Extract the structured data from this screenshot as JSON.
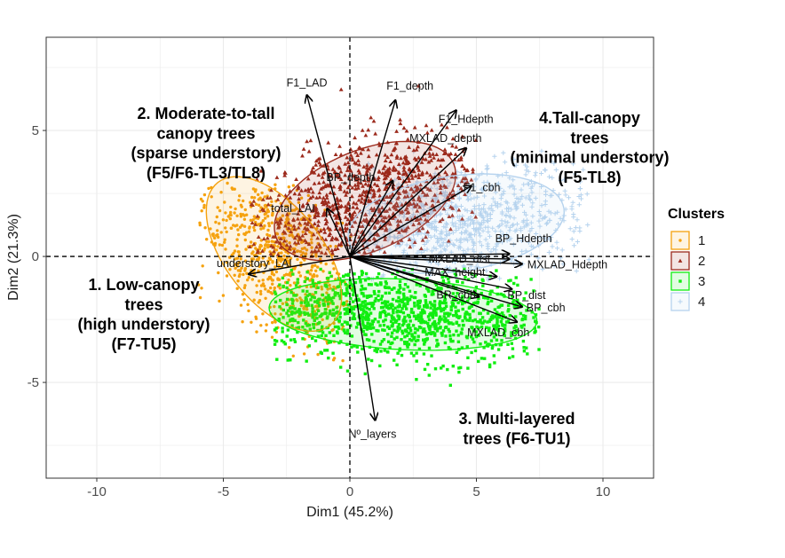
{
  "chart_data": {
    "type": "scatter",
    "subtype": "PCA biplot",
    "xlabel": "Dim1 (45.2%)",
    "ylabel": "Dim2 (21.3%)",
    "xlim": [
      -12,
      12
    ],
    "ylim": [
      -8.8,
      8.7
    ],
    "xticks": [
      -10,
      -5,
      0,
      5,
      10
    ],
    "yticks": [
      -5,
      0,
      5
    ],
    "grid": true,
    "reference_lines": {
      "x": 0,
      "y": 0,
      "style": "dashed"
    },
    "legend": {
      "title": "Clusters",
      "position": "right",
      "items": [
        {
          "label": "1",
          "color": "#F5A20F",
          "marker": "circle"
        },
        {
          "label": "2",
          "color": "#9C2A1C",
          "marker": "triangle"
        },
        {
          "label": "3",
          "color": "#11EE11",
          "marker": "square"
        },
        {
          "label": "4",
          "color": "#B6D3EE",
          "marker": "cross"
        }
      ]
    },
    "clusters": [
      {
        "label": "1",
        "color": "#F5A20F",
        "marker": "circle",
        "ellipse": {
          "cx": -3.0,
          "cy": 0.1,
          "rx": 3.6,
          "ry": 1.9,
          "angle_deg": -52
        },
        "point_extent": {
          "x": [
            -6.0,
            0.2
          ],
          "y": [
            -4.8,
            3.0
          ]
        }
      },
      {
        "label": "2",
        "color": "#9C2A1C",
        "marker": "triangle",
        "ellipse": {
          "cx": 0.6,
          "cy": 2.2,
          "rx": 3.8,
          "ry": 2.0,
          "angle_deg": 23
        },
        "point_extent": {
          "x": [
            -4.0,
            5.0
          ],
          "y": [
            0.0,
            6.8
          ]
        }
      },
      {
        "label": "3",
        "color": "#11EE11",
        "marker": "square",
        "ellipse": {
          "cx": 2.1,
          "cy": -2.3,
          "rx": 5.3,
          "ry": 1.4,
          "angle_deg": -3
        },
        "point_extent": {
          "x": [
            -3.0,
            7.5
          ],
          "y": [
            -6.0,
            -0.5
          ]
        }
      },
      {
        "label": "4",
        "color": "#B6D3EE",
        "marker": "cross",
        "ellipse": {
          "cx": 4.2,
          "cy": 1.3,
          "rx": 4.3,
          "ry": 1.9,
          "angle_deg": 8
        },
        "point_extent": {
          "x": [
            0.5,
            9.5
          ],
          "y": [
            -1.0,
            4.2
          ]
        }
      }
    ],
    "variables": [
      {
        "name": "F1_LAD",
        "x": -1.7,
        "y": 6.4
      },
      {
        "name": "F1_depth",
        "x": 1.8,
        "y": 6.2
      },
      {
        "name": "F1_Hdepth",
        "x": 4.2,
        "y": 5.8
      },
      {
        "name": "MXLAD_depth",
        "x": 4.6,
        "y": 4.3
      },
      {
        "name": "F1_cbh",
        "x": 4.8,
        "y": 2.8
      },
      {
        "name": "BP_depth",
        "x": 1.7,
        "y": 3.0
      },
      {
        "name": "total_LAI",
        "x": -0.9,
        "y": 1.9
      },
      {
        "name": "understory_LAI",
        "x": -4.0,
        "y": -0.7
      },
      {
        "name": "BP_Hdepth",
        "x": 6.3,
        "y": 0.1
      },
      {
        "name": "MXLAD_dist",
        "x": 6.3,
        "y": -0.1
      },
      {
        "name": "MXLAD_Hdepth",
        "x": 6.8,
        "y": -0.3
      },
      {
        "name": "MAX_height",
        "x": 5.8,
        "y": -0.8
      },
      {
        "name": "BP_dist",
        "x": 6.4,
        "y": -1.3
      },
      {
        "name": "BR_cbh",
        "x": 5.1,
        "y": -1.6
      },
      {
        "name": "BP_cbh",
        "x": 6.8,
        "y": -2.0
      },
      {
        "name": "MXLAD_cbh",
        "x": 6.6,
        "y": -2.6
      },
      {
        "name": "Nº_layers",
        "x": 1.0,
        "y": -6.5
      }
    ],
    "annotations": [
      {
        "id": "c1",
        "lines": [
          "1. Low-canopy",
          "trees",
          "(high understory)",
          "(F7-TU5)"
        ]
      },
      {
        "id": "c2",
        "lines": [
          "2. Moderate-to-tall",
          "canopy trees",
          "(sparse understory)",
          "(F5/F6-TL3/TL8)"
        ]
      },
      {
        "id": "c3",
        "lines": [
          "3. Multi-layered",
          "trees (F6-TU1)"
        ]
      },
      {
        "id": "c4",
        "lines": [
          "4.Tall-canopy",
          "trees",
          "(minimal understory)",
          "(F5-TL8)"
        ]
      }
    ]
  }
}
